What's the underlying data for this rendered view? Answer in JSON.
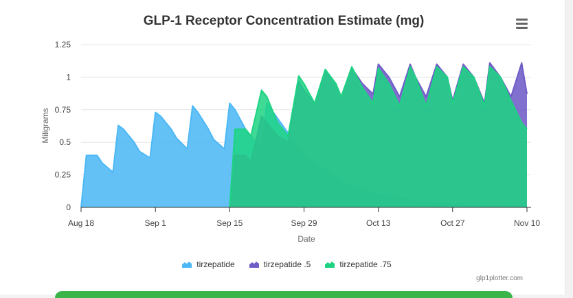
{
  "chart_data": {
    "type": "area",
    "title": "GLP-1 Receptor Concentration Estimate (mg)",
    "ylabel": "Miligrams",
    "xlabel": "Date",
    "ylim": [
      0,
      1.25
    ],
    "xlim": [
      "2023-08-18",
      "2023-11-10"
    ],
    "yticks": [
      0,
      0.25,
      0.5,
      0.75,
      1,
      1.25
    ],
    "ytick_labels": [
      "0",
      "0.25",
      "0.5",
      "0.75",
      "1",
      "1.25"
    ],
    "xticks": [
      "2023-08-18",
      "2023-09-01",
      "2023-09-15",
      "2023-09-29",
      "2023-10-13",
      "2023-10-27",
      "2023-11-10"
    ],
    "xtick_labels": [
      "Aug 18",
      "Sep 1",
      "Sep 15",
      "Sep 29",
      "Oct 13",
      "Oct 27",
      "Nov 10"
    ],
    "grid": true,
    "legend_position": "bottom",
    "series": [
      {
        "name": "tirzepatide",
        "color": "#4db8f5",
        "x": [
          "2023-08-18",
          "2023-08-19",
          "2023-08-21",
          "2023-08-22",
          "2023-08-24",
          "2023-08-25",
          "2023-08-26",
          "2023-08-28",
          "2023-08-29",
          "2023-08-31",
          "2023-09-01",
          "2023-09-02",
          "2023-09-04",
          "2023-09-05",
          "2023-09-07",
          "2023-09-08",
          "2023-09-09",
          "2023-09-11",
          "2023-09-12",
          "2023-09-14",
          "2023-09-15",
          "2023-09-16",
          "2023-09-18",
          "2023-09-19",
          "2023-09-21",
          "2023-09-22",
          "2023-09-29",
          "2023-10-06",
          "2023-10-13",
          "2023-10-20",
          "2023-10-27",
          "2023-11-03",
          "2023-11-10"
        ],
        "values": [
          0,
          0.4,
          0.4,
          0.34,
          0.27,
          0.63,
          0.6,
          0.5,
          0.43,
          0.38,
          0.73,
          0.7,
          0.6,
          0.53,
          0.45,
          0.78,
          0.73,
          0.6,
          0.52,
          0.45,
          0.8,
          0.75,
          0.6,
          0.55,
          0.45,
          0.8,
          0.4,
          0.2,
          0.1,
          0.05,
          0.025,
          0.012,
          0.006
        ]
      },
      {
        "name": "tirzepatide .5",
        "color": "#6f5cc7",
        "x": [
          "2023-09-15",
          "2023-09-16",
          "2023-09-18",
          "2023-09-19",
          "2023-09-21",
          "2023-09-22",
          "2023-09-24",
          "2023-09-26",
          "2023-09-28",
          "2023-09-29",
          "2023-10-01",
          "2023-10-03",
          "2023-10-05",
          "2023-10-06",
          "2023-10-08",
          "2023-10-10",
          "2023-10-12",
          "2023-10-13",
          "2023-10-15",
          "2023-10-17",
          "2023-10-19",
          "2023-10-20",
          "2023-10-22",
          "2023-10-24",
          "2023-10-26",
          "2023-10-27",
          "2023-10-29",
          "2023-10-31",
          "2023-11-02",
          "2023-11-03",
          "2023-11-05",
          "2023-11-07",
          "2023-11-09",
          "2023-11-10"
        ],
        "values": [
          0,
          0.4,
          0.4,
          0.35,
          0.7,
          0.65,
          0.55,
          0.5,
          0.97,
          0.9,
          0.8,
          1.05,
          0.95,
          0.85,
          1.07,
          0.95,
          0.87,
          1.1,
          1.0,
          0.85,
          1.1,
          1.0,
          0.85,
          1.1,
          1.0,
          0.82,
          1.1,
          1.0,
          0.8,
          1.11,
          1.0,
          0.85,
          1.11,
          0.87
        ]
      },
      {
        "name": "tirzepatide .75",
        "color": "#1dd382",
        "x": [
          "2023-09-15",
          "2023-09-16",
          "2023-09-18",
          "2023-09-19",
          "2023-09-21",
          "2023-09-22",
          "2023-09-24",
          "2023-09-26",
          "2023-09-28",
          "2023-09-29",
          "2023-10-01",
          "2023-10-03",
          "2023-10-05",
          "2023-10-06",
          "2023-10-08",
          "2023-10-10",
          "2023-10-12",
          "2023-10-13",
          "2023-10-15",
          "2023-10-17",
          "2023-10-19",
          "2023-10-20",
          "2023-10-22",
          "2023-10-24",
          "2023-10-26",
          "2023-10-27",
          "2023-10-29",
          "2023-10-31",
          "2023-11-02",
          "2023-11-03",
          "2023-11-05",
          "2023-11-07",
          "2023-11-09",
          "2023-11-10"
        ],
        "values": [
          0,
          0.6,
          0.6,
          0.55,
          0.9,
          0.85,
          0.65,
          0.55,
          1.01,
          0.95,
          0.8,
          1.06,
          0.95,
          0.85,
          1.08,
          0.92,
          0.8,
          1.07,
          0.95,
          0.78,
          1.08,
          1.0,
          0.78,
          1.08,
          1.0,
          0.8,
          1.08,
          1.0,
          0.78,
          1.08,
          1.0,
          0.82,
          0.65,
          0.6
        ]
      }
    ]
  },
  "credit": "glp1plotter.com",
  "menu_icon": "hamburger-icon"
}
